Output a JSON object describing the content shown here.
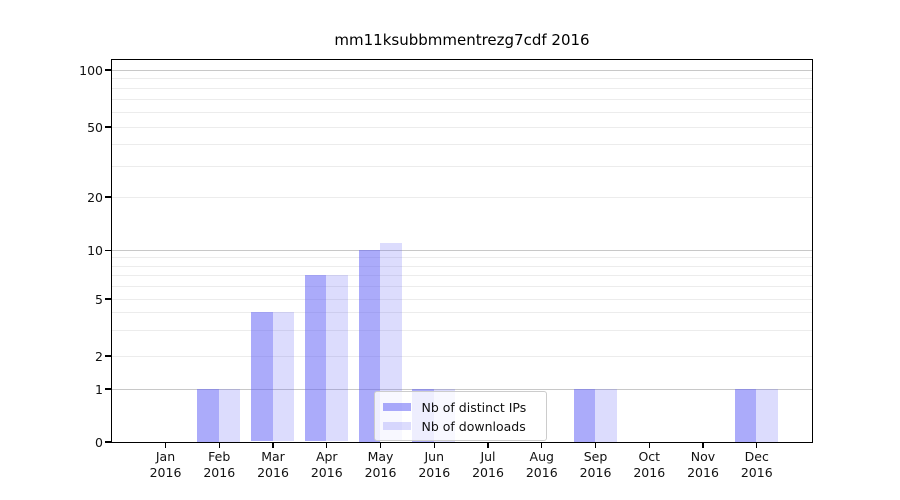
{
  "title": "mm11ksubbmmentrezg7cdf 2016",
  "chart_data": {
    "type": "bar",
    "title": "mm11ksubbmmentrezg7cdf 2016",
    "x": {
      "months": [
        "Jan",
        "Feb",
        "Mar",
        "Apr",
        "May",
        "Jun",
        "Jul",
        "Aug",
        "Sep",
        "Oct",
        "Nov",
        "Dec"
      ],
      "year": "2016"
    },
    "series": [
      {
        "name": "Nb of distinct IPs",
        "values": [
          0,
          1,
          4,
          7,
          10,
          1,
          0,
          0,
          1,
          0,
          0,
          1
        ],
        "color": "rgba(94,94,245,0.52)"
      },
      {
        "name": "Nb of downloads",
        "values": [
          0,
          1,
          4,
          7,
          11,
          1,
          0,
          0,
          1,
          0,
          0,
          1
        ],
        "color": "rgba(94,94,245,0.22)"
      }
    ],
    "yscale": "symlog",
    "ylim": [
      0,
      115
    ],
    "yticks_labeled": [
      100,
      50,
      20,
      10,
      5,
      2,
      1,
      0
    ],
    "grid_major_values": [
      1,
      10,
      100
    ],
    "grid_minor_values": [
      2,
      3,
      4,
      5,
      6,
      7,
      8,
      9,
      20,
      30,
      40,
      50,
      60,
      70,
      80,
      90
    ],
    "legend_position": "lower center",
    "grid": true
  },
  "colors": {
    "background": "#ffffff",
    "bar_base": "#5e5ef5",
    "grid_major": "#c8c8c8",
    "grid_minor": "#ececec",
    "axis_frame": "#000000",
    "legend_border": "#cccccc",
    "legend_background": "rgba(255,255,255,0.8)",
    "text": "#111111"
  }
}
